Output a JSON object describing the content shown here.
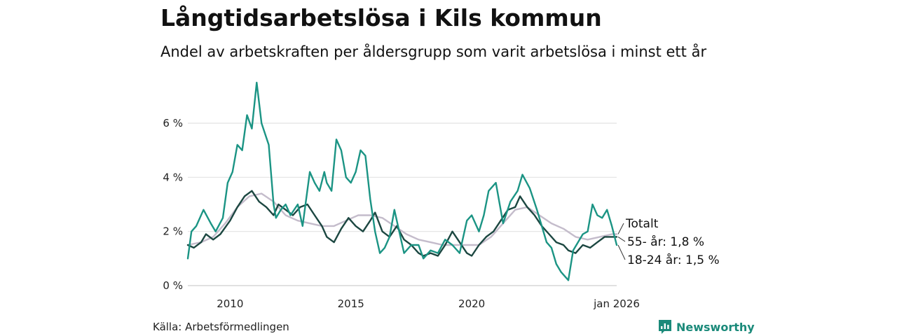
{
  "title": "Långtidsarbetslösa i Kils kommun",
  "subtitle": "Andel av arbetskraften per åldersgrupp som varit arbetslösa i minst ett år",
  "source": "Källa: Arbetsförmedlingen",
  "brand": "Newsworthy",
  "chart_data": {
    "type": "line",
    "title": "Långtidsarbetslösa i Kils kommun",
    "x_range": [
      2008.25,
      2026.0
    ],
    "ylim": [
      0,
      7.5
    ],
    "y_ticks": [
      {
        "value": 0,
        "label": "0 %"
      },
      {
        "value": 2,
        "label": "2 %"
      },
      {
        "value": 4,
        "label": "4 %"
      },
      {
        "value": 6,
        "label": "6 %"
      }
    ],
    "x_ticks": [
      {
        "value": 2010,
        "label": "2010"
      },
      {
        "value": 2015,
        "label": "2015"
      },
      {
        "value": 2020,
        "label": "2020"
      },
      {
        "value": 2026,
        "label": "jan 2026"
      }
    ],
    "grid": true,
    "series": [
      {
        "name": "Totalt",
        "label": "Totalt",
        "color": "#c4bccb",
        "x": [
          2008.25,
          2008.8,
          2009.3,
          2009.8,
          2010.3,
          2010.8,
          2011.3,
          2011.8,
          2012.3,
          2012.8,
          2013.3,
          2013.8,
          2014.3,
          2014.8,
          2015.3,
          2015.8,
          2016.3,
          2016.8,
          2017.3,
          2017.8,
          2018.3,
          2018.8,
          2019.3,
          2019.8,
          2020.3,
          2020.8,
          2021.3,
          2021.8,
          2022.3,
          2022.8,
          2023.3,
          2023.8,
          2024.3,
          2024.8,
          2025.3,
          2025.8,
          2026.0
        ],
        "y": [
          1.5,
          1.6,
          1.8,
          2.3,
          2.9,
          3.3,
          3.4,
          3.1,
          2.6,
          2.4,
          2.3,
          2.2,
          2.2,
          2.4,
          2.6,
          2.6,
          2.5,
          2.2,
          1.9,
          1.7,
          1.6,
          1.5,
          1.5,
          1.5,
          1.5,
          1.8,
          2.3,
          2.8,
          2.9,
          2.6,
          2.3,
          2.1,
          1.8,
          1.7,
          1.8,
          1.9,
          1.9
        ]
      },
      {
        "name": "55- år",
        "label": "55- år: 1,8 %",
        "color": "#1c4741",
        "x": [
          2008.25,
          2008.5,
          2008.8,
          2009.0,
          2009.3,
          2009.6,
          2010.0,
          2010.3,
          2010.6,
          2010.9,
          2011.2,
          2011.5,
          2011.8,
          2012.0,
          2012.3,
          2012.6,
          2012.9,
          2013.2,
          2013.5,
          2013.8,
          2014.0,
          2014.3,
          2014.6,
          2014.9,
          2015.2,
          2015.5,
          2015.8,
          2016.0,
          2016.3,
          2016.6,
          2016.9,
          2017.2,
          2017.5,
          2017.8,
          2018.0,
          2018.3,
          2018.6,
          2018.9,
          2019.2,
          2019.5,
          2019.8,
          2020.0,
          2020.3,
          2020.6,
          2020.9,
          2021.2,
          2021.5,
          2021.8,
          2022.0,
          2022.3,
          2022.6,
          2022.9,
          2023.2,
          2023.5,
          2023.8,
          2024.0,
          2024.3,
          2024.6,
          2024.9,
          2025.2,
          2025.5,
          2025.8,
          2026.0
        ],
        "y": [
          1.5,
          1.4,
          1.6,
          1.9,
          1.7,
          1.9,
          2.4,
          2.9,
          3.3,
          3.5,
          3.1,
          2.9,
          2.6,
          3.0,
          2.8,
          2.6,
          2.9,
          3.0,
          2.6,
          2.2,
          1.8,
          1.6,
          2.1,
          2.5,
          2.2,
          2.0,
          2.4,
          2.7,
          2.0,
          1.8,
          2.2,
          1.7,
          1.5,
          1.2,
          1.1,
          1.2,
          1.1,
          1.5,
          2.0,
          1.6,
          1.2,
          1.1,
          1.5,
          1.8,
          2.0,
          2.4,
          2.8,
          2.9,
          3.3,
          2.9,
          2.6,
          2.2,
          1.9,
          1.6,
          1.5,
          1.3,
          1.2,
          1.5,
          1.4,
          1.6,
          1.8,
          1.8,
          1.8
        ]
      },
      {
        "name": "18-24 år",
        "label": "18-24 år: 1,5 %",
        "color": "#1b9484",
        "x": [
          2008.25,
          2008.4,
          2008.6,
          2008.9,
          2009.2,
          2009.4,
          2009.7,
          2009.9,
          2010.1,
          2010.3,
          2010.5,
          2010.7,
          2010.9,
          2011.1,
          2011.3,
          2011.6,
          2011.8,
          2011.9,
          2012.1,
          2012.3,
          2012.5,
          2012.8,
          2013.0,
          2013.3,
          2013.5,
          2013.7,
          2013.9,
          2014.0,
          2014.2,
          2014.4,
          2014.6,
          2014.8,
          2015.0,
          2015.2,
          2015.4,
          2015.6,
          2015.8,
          2016.0,
          2016.2,
          2016.4,
          2016.6,
          2016.8,
          2017.0,
          2017.2,
          2017.5,
          2017.8,
          2018.0,
          2018.3,
          2018.6,
          2018.9,
          2019.2,
          2019.5,
          2019.8,
          2020.0,
          2020.3,
          2020.5,
          2020.7,
          2021.0,
          2021.3,
          2021.6,
          2021.9,
          2022.1,
          2022.4,
          2022.7,
          2022.9,
          2023.1,
          2023.3,
          2023.5,
          2023.7,
          2024.0,
          2024.2,
          2024.4,
          2024.6,
          2024.8,
          2025.0,
          2025.2,
          2025.4,
          2025.6,
          2025.8,
          2026.0
        ],
        "y": [
          1.0,
          2.0,
          2.2,
          2.8,
          2.3,
          2.0,
          2.5,
          3.8,
          4.2,
          5.2,
          5.0,
          6.3,
          5.8,
          7.5,
          6.0,
          5.2,
          3.0,
          2.5,
          2.8,
          3.0,
          2.6,
          3.0,
          2.2,
          4.2,
          3.8,
          3.5,
          4.2,
          3.8,
          3.5,
          5.4,
          5.0,
          4.0,
          3.8,
          4.2,
          5.0,
          4.8,
          3.2,
          2.0,
          1.2,
          1.4,
          1.8,
          2.8,
          2.0,
          1.2,
          1.5,
          1.5,
          1.0,
          1.3,
          1.2,
          1.7,
          1.5,
          1.2,
          2.4,
          2.6,
          2.0,
          2.6,
          3.5,
          3.8,
          2.3,
          3.1,
          3.5,
          4.1,
          3.6,
          2.8,
          2.2,
          1.6,
          1.4,
          0.8,
          0.5,
          0.2,
          1.3,
          1.6,
          1.9,
          2.0,
          3.0,
          2.6,
          2.5,
          2.8,
          2.2,
          1.5
        ]
      }
    ]
  }
}
